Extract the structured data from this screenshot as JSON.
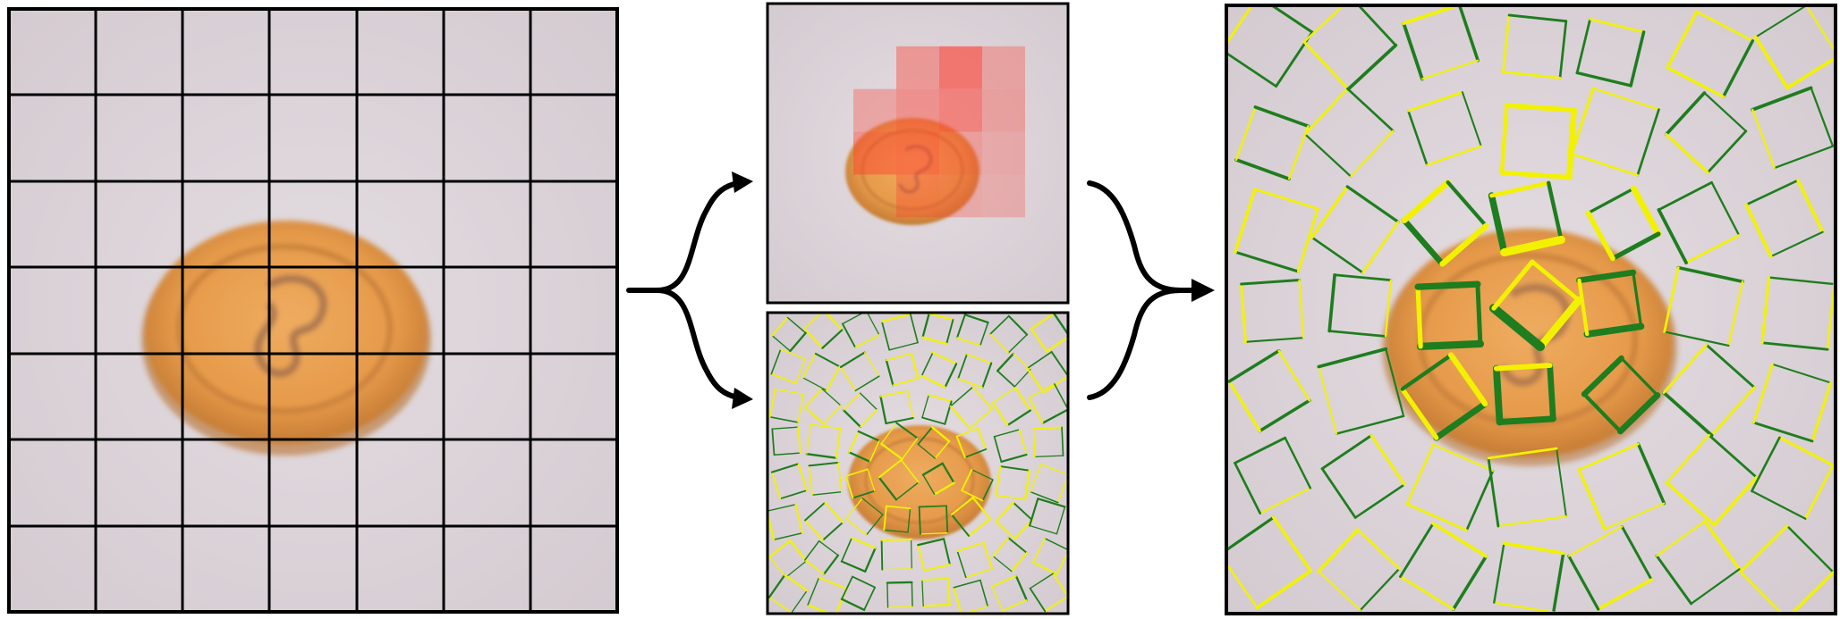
{
  "figure": {
    "colors": {
      "background": "#ffffff",
      "paper": "#d9d1d6",
      "paper_light": "#e3dce0",
      "coin_rim": "#d4873a",
      "coin_face": "#e69a4a",
      "coin_highlight": "#eeac60",
      "coin_shadow": "#b8722e",
      "emblem": "#9b6a4c",
      "grid_line": "#000000",
      "frame": "#000000",
      "heat": "#ff3b2f",
      "edge_green": "#1e7d1e",
      "edge_yellow": "#f2f200",
      "arrow": "#000000"
    },
    "panels": [
      {
        "name": "input-image-with-grid",
        "grid": {
          "rows": 7,
          "cols": 7
        }
      },
      {
        "name": "patch-attention-heatmap",
        "heat_cells": [
          {
            "row": 1,
            "col": 3,
            "level": 0.45
          },
          {
            "row": 1,
            "col": 4,
            "level": 0.85
          },
          {
            "row": 1,
            "col": 5,
            "level": 0.3
          },
          {
            "row": 2,
            "col": 2,
            "level": 0.3
          },
          {
            "row": 2,
            "col": 3,
            "level": 0.55
          },
          {
            "row": 2,
            "col": 4,
            "level": 0.7
          },
          {
            "row": 2,
            "col": 5,
            "level": 0.35
          },
          {
            "row": 3,
            "col": 2,
            "level": 0.5
          },
          {
            "row": 3,
            "col": 3,
            "level": 0.6
          },
          {
            "row": 3,
            "col": 4,
            "level": 0.4
          },
          {
            "row": 3,
            "col": 5,
            "level": 0.25
          },
          {
            "row": 4,
            "col": 3,
            "level": 0.3
          },
          {
            "row": 4,
            "col": 4,
            "level": 0.25
          },
          {
            "row": 4,
            "col": 5,
            "level": 0.2
          }
        ]
      },
      {
        "name": "rotated-patch-edges"
      },
      {
        "name": "weighted-patch-edges-output"
      }
    ],
    "arrows": [
      {
        "name": "split-arrow",
        "shape": "brace-split"
      },
      {
        "name": "merge-arrow",
        "shape": "brace-merge"
      }
    ]
  }
}
